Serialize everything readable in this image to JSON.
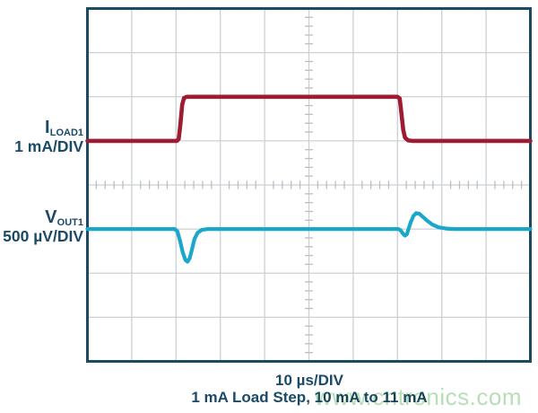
{
  "labels": {
    "ch1": {
      "symbol": "I",
      "sub": "LOAD1",
      "scale": "1 mA/DIV"
    },
    "ch2": {
      "symbol": "V",
      "sub": "OUT1",
      "scale": "500 µV/DIV"
    }
  },
  "captions": {
    "timebase": "10 µs/DIV",
    "description": "1 mA Load Step, 10 mA to 11 mA"
  },
  "watermark": "www.cntronics.com",
  "colors": {
    "background": "#ffffff",
    "frame": "#1c4a63",
    "text": "#1b4a68",
    "grid": "#ccd0d4",
    "tick": "#b9bfc4",
    "iload_trace": "#9e1b32",
    "vout_trace": "#1ba7c9",
    "watermark": "#b7dfb5"
  },
  "chart_data": {
    "type": "line",
    "title": "1 mA Load Step, 10 mA to 11 mA",
    "xlabel": "10 µs/DIV",
    "x_divisions": 10,
    "y_divisions": 8,
    "x_us_per_div": 10,
    "grid": true,
    "minor_ticks_per_div": 5,
    "legend_position": "left-outside",
    "series": [
      {
        "name": "ILOAD1",
        "units_per_div": "1 mA/DIV",
        "color": "#9e1b32",
        "stroke_width": 4.6,
        "description": "Load current: 10 mA baseline, steps to 11 mA at ~20 µs, back to 10 mA at ~70 µs",
        "data_us_mA": [
          [
            0,
            10
          ],
          [
            20,
            10
          ],
          [
            21.5,
            11
          ],
          [
            70,
            11
          ],
          [
            71.5,
            10
          ],
          [
            100,
            10
          ]
        ],
        "points_div": [
          [
            0,
            3.0
          ],
          [
            2.02,
            3.0
          ],
          [
            2.06,
            2.96
          ],
          [
            2.1,
            2.62
          ],
          [
            2.14,
            2.18
          ],
          [
            2.18,
            2.03
          ],
          [
            2.24,
            2.0
          ],
          [
            7.0,
            2.0
          ],
          [
            7.05,
            2.04
          ],
          [
            7.09,
            2.38
          ],
          [
            7.13,
            2.75
          ],
          [
            7.17,
            2.93
          ],
          [
            7.24,
            2.99
          ],
          [
            7.33,
            3.0
          ],
          [
            10,
            3.0
          ]
        ]
      },
      {
        "name": "VOUT1",
        "units_per_div": "500 µV/DIV",
        "color": "#1ba7c9",
        "stroke_width": 4.2,
        "description": "Output voltage transient: ~-370 µV dip at load step-up, ~+180 µV overshoot at load step-down",
        "data_us_uV": [
          [
            0,
            0
          ],
          [
            20,
            0
          ],
          [
            22.6,
            -370
          ],
          [
            27,
            -30
          ],
          [
            30,
            0
          ],
          [
            70,
            0
          ],
          [
            71.8,
            -75
          ],
          [
            74.2,
            180
          ],
          [
            78,
            90
          ],
          [
            82,
            25
          ],
          [
            86,
            0
          ],
          [
            100,
            0
          ]
        ],
        "points_div": [
          [
            0,
            5.0
          ],
          [
            1.97,
            5.0
          ],
          [
            2.03,
            5.05
          ],
          [
            2.09,
            5.26
          ],
          [
            2.15,
            5.52
          ],
          [
            2.21,
            5.7
          ],
          [
            2.26,
            5.74
          ],
          [
            2.31,
            5.66
          ],
          [
            2.36,
            5.46
          ],
          [
            2.42,
            5.22
          ],
          [
            2.49,
            5.08
          ],
          [
            2.58,
            5.02
          ],
          [
            2.72,
            5.0
          ],
          [
            7.02,
            5.0
          ],
          [
            7.07,
            5.03
          ],
          [
            7.12,
            5.1
          ],
          [
            7.17,
            5.15
          ],
          [
            7.21,
            5.12
          ],
          [
            7.25,
            5.0
          ],
          [
            7.3,
            4.84
          ],
          [
            7.36,
            4.7
          ],
          [
            7.42,
            4.64
          ],
          [
            7.49,
            4.65
          ],
          [
            7.57,
            4.72
          ],
          [
            7.67,
            4.81
          ],
          [
            7.79,
            4.9
          ],
          [
            7.93,
            4.96
          ],
          [
            8.1,
            4.99
          ],
          [
            8.3,
            5.0
          ],
          [
            10,
            5.0
          ]
        ]
      }
    ]
  }
}
